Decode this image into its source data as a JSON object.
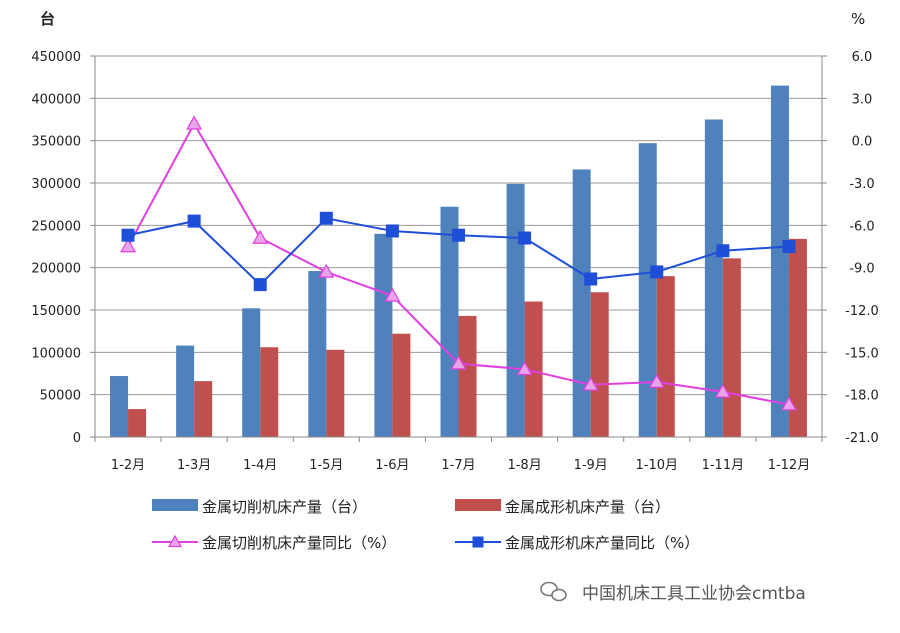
{
  "chart_data": {
    "type": "bar",
    "categories": [
      "1-2月",
      "1-3月",
      "1-4月",
      "1-5月",
      "1-6月",
      "1-7月",
      "1-8月",
      "1-9月",
      "1-10月",
      "1-11月",
      "1-12月"
    ],
    "y_left": {
      "unit": "台",
      "ylim": [
        0,
        450000
      ],
      "ticks": [
        "0",
        "50000",
        "100000",
        "150000",
        "200000",
        "250000",
        "300000",
        "350000",
        "400000",
        "450000"
      ]
    },
    "y_right": {
      "unit": "%",
      "ylim": [
        -21.0,
        6.0
      ],
      "ticks": [
        "-21.0",
        "-18.0",
        "-15.0",
        "-12.0",
        "-9.0",
        "-6.0",
        "-3.0",
        "0.0",
        "3.0",
        "6.0"
      ]
    },
    "grid": true,
    "legend_position": "bottom",
    "series": [
      {
        "name": "金属切削机床产量（台）",
        "kind": "bar",
        "axis": "left",
        "color": "#4f81bd",
        "values": [
          72000,
          108000,
          152000,
          196000,
          240000,
          272000,
          299000,
          316000,
          347000,
          375000,
          415000
        ]
      },
      {
        "name": "金属成形机床产量（台）",
        "kind": "bar",
        "axis": "left",
        "color": "#c0504d",
        "values": [
          33000,
          66000,
          106000,
          103000,
          122000,
          143000,
          160000,
          171000,
          190000,
          211000,
          234000
        ]
      },
      {
        "name": "金属切削机床产量同比（%）",
        "kind": "line",
        "axis": "right",
        "color": "#e040e0",
        "marker": "triangle",
        "values": [
          -7.5,
          1.2,
          -6.9,
          -9.3,
          -11.0,
          -15.8,
          -16.2,
          -17.3,
          -17.1,
          -17.8,
          -18.7
        ]
      },
      {
        "name": "金属成形机床产量同比（%）",
        "kind": "line",
        "axis": "right",
        "color": "#1f4fd8",
        "marker": "square",
        "values": [
          -6.7,
          -5.7,
          -10.2,
          -5.5,
          -6.4,
          -6.7,
          -6.9,
          -9.8,
          -9.3,
          -7.8,
          -7.5
        ]
      }
    ]
  },
  "watermark": "中国机床工具工业协会cmtba"
}
